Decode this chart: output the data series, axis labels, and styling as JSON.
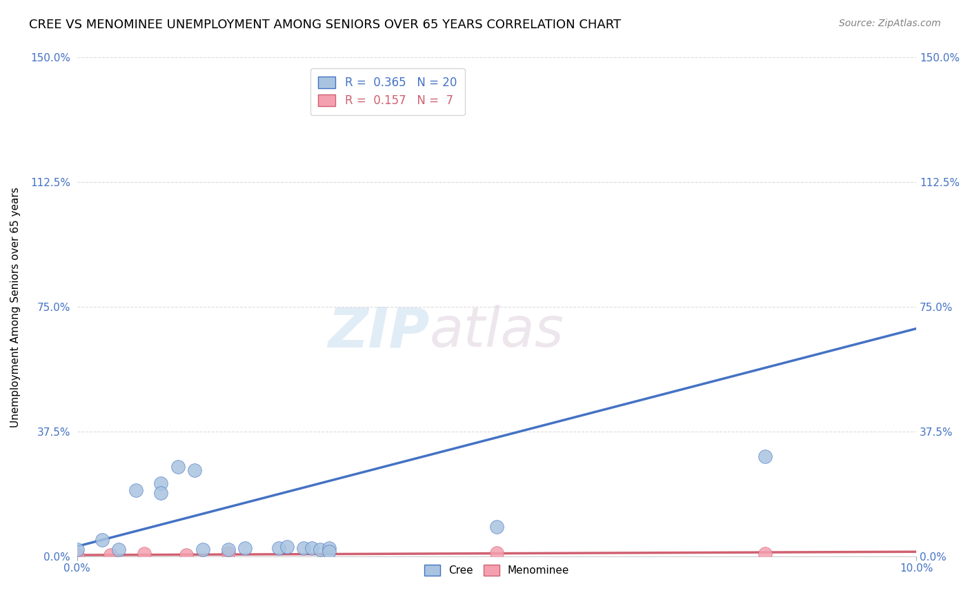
{
  "title": "CREE VS MENOMINEE UNEMPLOYMENT AMONG SENIORS OVER 65 YEARS CORRELATION CHART",
  "source": "Source: ZipAtlas.com",
  "xlabel_ticks": [
    "0.0%",
    "10.0%"
  ],
  "ylabel_ticks": [
    "0.0%",
    "37.5%",
    "75.0%",
    "112.5%",
    "150.0%"
  ],
  "ylabel_label": "Unemployment Among Seniors over 65 years",
  "xlim": [
    0.0,
    0.1
  ],
  "ylim": [
    0.0,
    1.5
  ],
  "watermark_zip": "ZIP",
  "watermark_atlas": "atlas",
  "cree_R": 0.365,
  "cree_N": 20,
  "menominee_R": 0.157,
  "menominee_N": 7,
  "cree_color": "#a8c4e0",
  "cree_line_color": "#4472C4",
  "menominee_color": "#f4a0b0",
  "menominee_line_color": "#d06070",
  "cree_x": [
    0.0,
    0.003,
    0.005,
    0.007,
    0.01,
    0.01,
    0.012,
    0.014,
    0.015,
    0.018,
    0.02,
    0.024,
    0.025,
    0.027,
    0.028,
    0.029,
    0.03,
    0.05,
    0.03,
    0.082
  ],
  "cree_y": [
    0.02,
    0.05,
    0.02,
    0.2,
    0.22,
    0.19,
    0.27,
    0.26,
    0.02,
    0.02,
    0.025,
    0.025,
    0.03,
    0.025,
    0.025,
    0.02,
    0.025,
    0.09,
    0.015,
    0.3
  ],
  "menominee_x": [
    0.0,
    0.004,
    0.008,
    0.013,
    0.018,
    0.05,
    0.082
  ],
  "menominee_y": [
    0.005,
    0.005,
    0.008,
    0.005,
    0.01,
    0.01,
    0.008
  ],
  "cree_line_x": [
    0.0,
    0.1
  ],
  "cree_line_y": [
    0.03,
    0.685
  ],
  "menominee_line_x": [
    0.0,
    0.1
  ],
  "menominee_line_y": [
    0.004,
    0.014
  ]
}
